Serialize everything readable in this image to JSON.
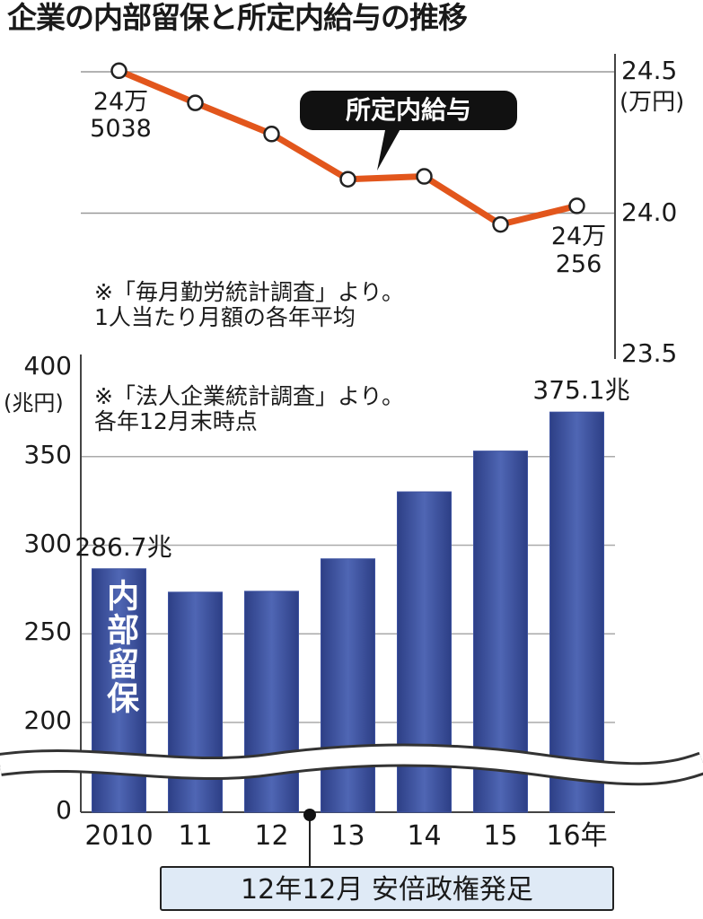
{
  "title": "企業の内部留保と所定内給与の推移",
  "chart_data": [
    {
      "type": "line",
      "series": [
        {
          "name": "所定内給与",
          "color": "#e2561c",
          "values": [
            24.5038,
            24.39,
            24.28,
            24.12,
            24.13,
            23.96,
            24.0256
          ],
          "value_labels": [
            "24万\n5038",
            null,
            null,
            null,
            null,
            null,
            "24万\n256"
          ]
        }
      ],
      "y_axis_label": "(万円)",
      "ylim": [
        23.5,
        24.5
      ],
      "yticks": [
        23.5,
        {
          "value": 24,
          "label": "24.0"
        },
        24.5
      ],
      "grid": true,
      "note": "※「毎月勤労統計調査」より。\n1人当たり月額の各年平均"
    },
    {
      "type": "bar",
      "categories": [
        "2010",
        "11",
        "12",
        "13",
        "14",
        "15",
        "16年"
      ],
      "series": [
        {
          "name": "内部留保",
          "color": "#3d52a0",
          "values": [
            286.7,
            273.5,
            274,
            292.3,
            330.1,
            353.1,
            375.1
          ],
          "value_labels": [
            "286.7兆",
            null,
            null,
            null,
            null,
            null,
            "375.1兆"
          ]
        }
      ],
      "y_axis_label": "(兆円)",
      "ylim": [
        0,
        400
      ],
      "yticks": [
        0,
        200,
        250,
        300,
        350,
        400
      ],
      "axis_break": [
        0,
        200
      ],
      "grid": true,
      "note": "※「法人企業統計調査」より。\n各年12月末時点",
      "annotation": "12年12月 安倍政権発足"
    }
  ]
}
